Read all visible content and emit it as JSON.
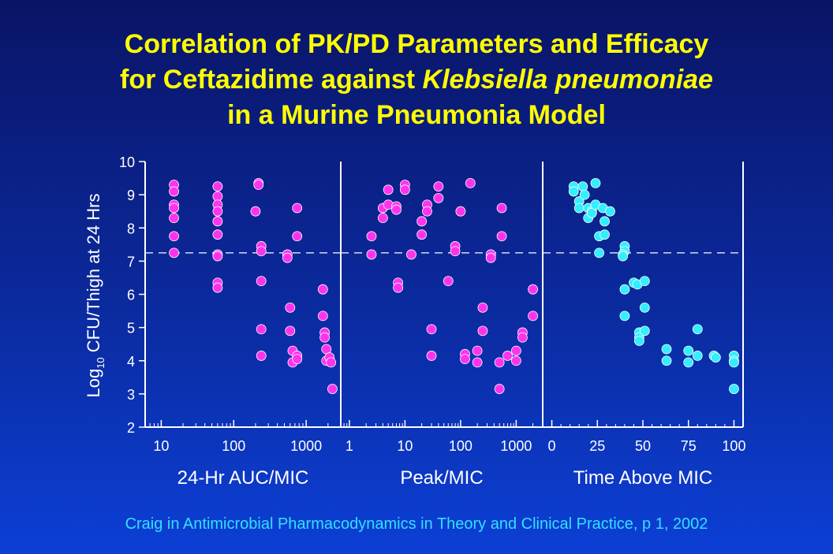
{
  "title": {
    "line1": "Correlation of PK/PD Parameters and Efficacy",
    "line2_prefix": "for Ceftazidime against ",
    "line2_italic": "Klebsiella pneumoniae",
    "line3": "in a Murine Pneumonia Model"
  },
  "citation": "Craig in Antimicrobial Pharmacodynamics in Theory and Clinical Practice, p 1, 2002",
  "colors": {
    "background_top": "#0a1466",
    "background_bottom": "#0c3fd6",
    "title": "#ffff00",
    "citation": "#33e0ff",
    "axes": "#ffffff",
    "marker_magenta": "#ff33ee",
    "marker_cyan": "#33eeff"
  },
  "chart_data": [
    {
      "type": "scatter",
      "xlabel": "24-Hr AUC/MIC",
      "ylabel": "Log10 CFU/Thigh at 24 Hrs",
      "ylabel_main": "Log",
      "ylabel_sub": "10",
      "ylabel_rest": " CFU/Thigh at 24 Hrs",
      "x_scale": "log",
      "xlim": [
        6,
        3000
      ],
      "ylim": [
        2,
        10
      ],
      "yticks": [
        "2",
        "3",
        "4",
        "5",
        "6",
        "7",
        "8",
        "9",
        "10"
      ],
      "xticks": [
        {
          "value": 10,
          "label": "10"
        },
        {
          "value": 100,
          "label": "100"
        },
        {
          "value": 1000,
          "label": "1000"
        }
      ],
      "reference_line_y": 7.25,
      "marker_color": "#ff33ee",
      "points": [
        [
          15,
          9.3
        ],
        [
          15,
          9.1
        ],
        [
          15,
          8.7
        ],
        [
          15,
          8.6
        ],
        [
          15,
          8.3
        ],
        [
          15,
          7.75
        ],
        [
          15,
          7.25
        ],
        [
          60,
          9.25
        ],
        [
          60,
          8.95
        ],
        [
          60,
          8.7
        ],
        [
          60,
          8.5
        ],
        [
          60,
          8.2
        ],
        [
          60,
          7.8
        ],
        [
          60,
          7.2
        ],
        [
          60,
          7.15
        ],
        [
          60,
          6.35
        ],
        [
          60,
          6.2
        ],
        [
          200,
          8.5
        ],
        [
          220,
          9.35
        ],
        [
          220,
          9.3
        ],
        [
          240,
          7.45
        ],
        [
          240,
          7.3
        ],
        [
          240,
          6.4
        ],
        [
          240,
          4.95
        ],
        [
          240,
          4.15
        ],
        [
          550,
          7.2
        ],
        [
          550,
          7.1
        ],
        [
          600,
          5.6
        ],
        [
          600,
          4.9
        ],
        [
          650,
          4.3
        ],
        [
          650,
          3.95
        ],
        [
          750,
          8.6
        ],
        [
          750,
          7.75
        ],
        [
          750,
          4.15
        ],
        [
          750,
          4.05
        ],
        [
          1700,
          6.15
        ],
        [
          1700,
          5.35
        ],
        [
          1800,
          4.85
        ],
        [
          1800,
          4.7
        ],
        [
          1900,
          4.35
        ],
        [
          1900,
          4.0
        ],
        [
          2100,
          4.1
        ],
        [
          2200,
          3.95
        ],
        [
          2300,
          3.15
        ]
      ]
    },
    {
      "type": "scatter",
      "xlabel": "Peak/MIC",
      "x_scale": "log",
      "xlim": [
        0.7,
        3000
      ],
      "ylim": [
        2,
        10
      ],
      "xticks": [
        {
          "value": 1,
          "label": "1"
        },
        {
          "value": 10,
          "label": "10"
        },
        {
          "value": 100,
          "label": "100"
        },
        {
          "value": 1000,
          "label": "1000"
        }
      ],
      "reference_line_y": 7.25,
      "marker_color": "#ff33ee",
      "points": [
        [
          2.5,
          7.75
        ],
        [
          2.5,
          7.2
        ],
        [
          4,
          8.6
        ],
        [
          4,
          8.3
        ],
        [
          5,
          9.15
        ],
        [
          5,
          8.7
        ],
        [
          7,
          8.65
        ],
        [
          7,
          8.55
        ],
        [
          7.5,
          6.35
        ],
        [
          7.5,
          6.2
        ],
        [
          10,
          9.3
        ],
        [
          10,
          9.15
        ],
        [
          13,
          7.2
        ],
        [
          20,
          8.2
        ],
        [
          20,
          7.8
        ],
        [
          25,
          8.7
        ],
        [
          25,
          8.5
        ],
        [
          30,
          4.95
        ],
        [
          30,
          4.15
        ],
        [
          40,
          9.25
        ],
        [
          40,
          8.9
        ],
        [
          60,
          6.4
        ],
        [
          80,
          7.45
        ],
        [
          80,
          7.3
        ],
        [
          100,
          8.5
        ],
        [
          120,
          4.2
        ],
        [
          120,
          4.05
        ],
        [
          150,
          9.35
        ],
        [
          200,
          4.3
        ],
        [
          200,
          3.95
        ],
        [
          250,
          5.6
        ],
        [
          250,
          4.9
        ],
        [
          350,
          7.2
        ],
        [
          350,
          7.1
        ],
        [
          500,
          3.95
        ],
        [
          500,
          3.15
        ],
        [
          550,
          8.6
        ],
        [
          550,
          7.75
        ],
        [
          700,
          4.15
        ],
        [
          1000,
          4.3
        ],
        [
          1000,
          4.0
        ],
        [
          1300,
          4.85
        ],
        [
          1300,
          4.7
        ],
        [
          2000,
          6.15
        ],
        [
          2000,
          5.35
        ]
      ]
    },
    {
      "type": "scatter",
      "xlabel": "Time Above MIC",
      "x_scale": "linear",
      "xlim": [
        -5,
        105
      ],
      "ylim": [
        2,
        10
      ],
      "xticks": [
        {
          "value": 0,
          "label": "0"
        },
        {
          "value": 25,
          "label": "25"
        },
        {
          "value": 50,
          "label": "50"
        },
        {
          "value": 75,
          "label": "75"
        },
        {
          "value": 100,
          "label": "100"
        }
      ],
      "reference_line_y": 7.25,
      "marker_color": "#33eeff",
      "points": [
        [
          12,
          9.25
        ],
        [
          12,
          9.1
        ],
        [
          15,
          8.8
        ],
        [
          15,
          8.6
        ],
        [
          17,
          9.25
        ],
        [
          18,
          9.0
        ],
        [
          20,
          8.6
        ],
        [
          20,
          8.3
        ],
        [
          22,
          8.5
        ],
        [
          22,
          8.45
        ],
        [
          24,
          9.35
        ],
        [
          24,
          8.7
        ],
        [
          26,
          7.75
        ],
        [
          26,
          7.25
        ],
        [
          28,
          8.6
        ],
        [
          29,
          7.8
        ],
        [
          29,
          8.2
        ],
        [
          32,
          8.5
        ],
        [
          40,
          7.45
        ],
        [
          40,
          7.3
        ],
        [
          39,
          7.2
        ],
        [
          39,
          7.15
        ],
        [
          40,
          6.15
        ],
        [
          40,
          5.35
        ],
        [
          45,
          6.35
        ],
        [
          47,
          6.3
        ],
        [
          48,
          4.85
        ],
        [
          48,
          4.7
        ],
        [
          48,
          4.6
        ],
        [
          51,
          6.4
        ],
        [
          51,
          5.6
        ],
        [
          51,
          4.9
        ],
        [
          63,
          4.35
        ],
        [
          63,
          4.0
        ],
        [
          75,
          4.3
        ],
        [
          75,
          3.95
        ],
        [
          80,
          4.95
        ],
        [
          80,
          4.15
        ],
        [
          89,
          4.15
        ],
        [
          90,
          4.1
        ],
        [
          100,
          4.15
        ],
        [
          100,
          4.0
        ],
        [
          100,
          3.95
        ],
        [
          100,
          3.15
        ]
      ]
    }
  ]
}
